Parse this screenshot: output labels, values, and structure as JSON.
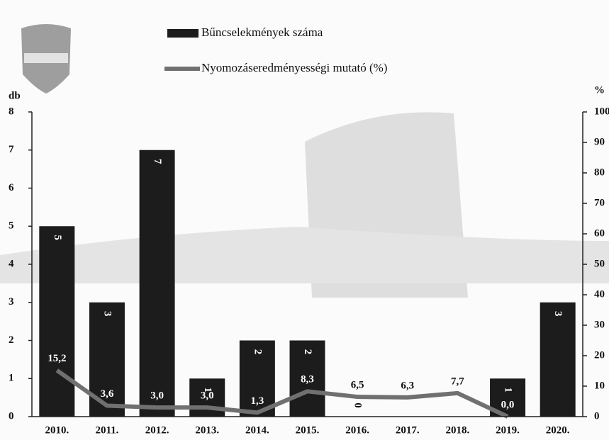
{
  "chart_data": {
    "type": "bar-line",
    "y_label": "db",
    "y2_label": "%",
    "categories": [
      "2010.",
      "2011.",
      "2012.",
      "2013.",
      "2014.",
      "2015.",
      "2016.",
      "2017.",
      "2018.",
      "2019.",
      "2020."
    ],
    "series": [
      {
        "name": "Bűncselekmények száma",
        "color": "#1c1c1c",
        "type": "bar",
        "values": [
          5,
          3,
          7,
          1,
          2,
          2,
          0,
          0,
          0,
          1,
          3
        ],
        "value_labels": [
          "5",
          "3",
          "7",
          "1",
          "2",
          "2",
          "0",
          null,
          null,
          "1",
          "3"
        ]
      },
      {
        "name": "Nyomozáseredményességi mutató (%)",
        "color": "#707070",
        "type": "line",
        "axis": "y2",
        "values": [
          15.2,
          3.6,
          3.0,
          3.0,
          1.3,
          8.3,
          6.5,
          6.3,
          7.7,
          0.0,
          null
        ],
        "value_labels": [
          "15,2",
          "3,6",
          "3,0",
          "3,0",
          "1,3",
          "8,3",
          "6,5",
          "6,3",
          "7,7",
          "0,0",
          null
        ]
      }
    ],
    "ylim": [
      0,
      8
    ],
    "yticks": [
      0,
      1,
      2,
      3,
      4,
      5,
      6,
      7,
      8
    ],
    "y2lim": [
      0,
      100
    ],
    "y2ticks": [
      0,
      10,
      20,
      30,
      40,
      50,
      60,
      70,
      80,
      90,
      100
    ]
  }
}
